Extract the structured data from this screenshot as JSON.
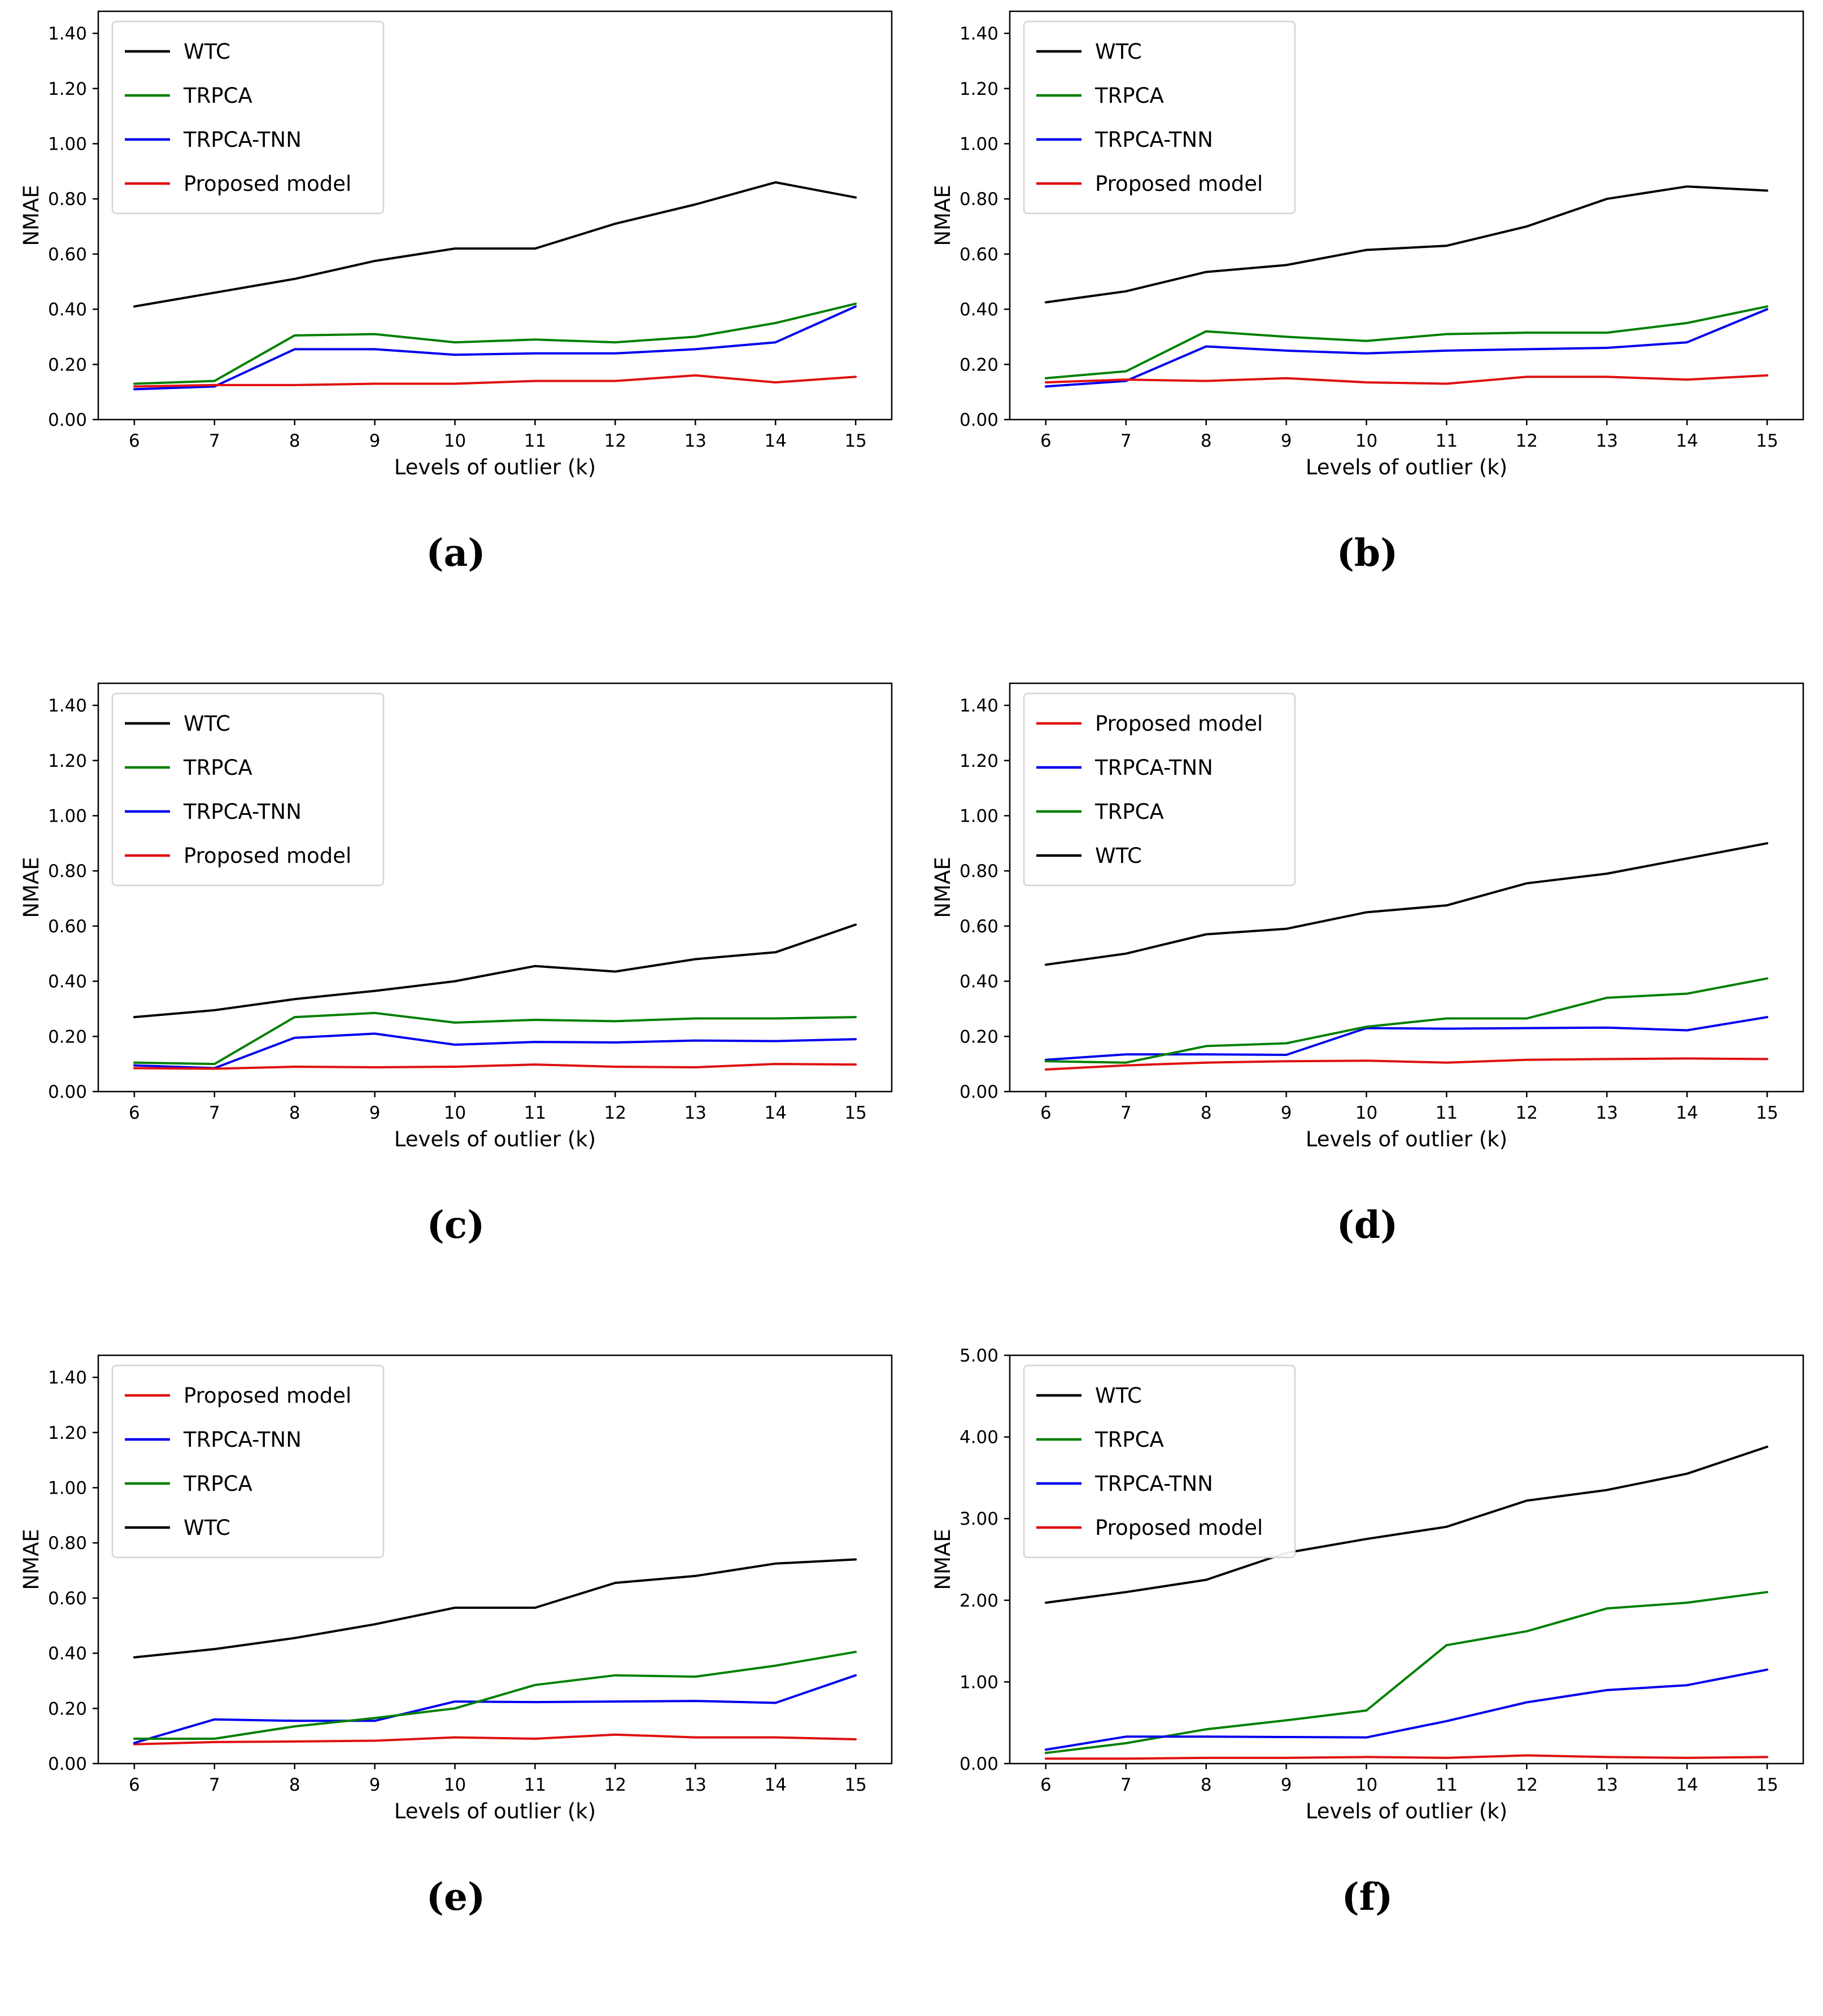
{
  "figure": {
    "xlabel": "Levels of outlier (k)",
    "ylabel": "NMAE"
  },
  "colors": {
    "WTC": "#000000",
    "TRPCA": "#008000",
    "TRPCA-TNN": "#0000ee",
    "Proposed model": "#e01010"
  },
  "chart_data": [
    {
      "id": "a",
      "type": "line",
      "caption": "(a)",
      "xlabel": "Levels of outlier (k)",
      "ylabel": "NMAE",
      "x": [
        6,
        7,
        8,
        9,
        10,
        11,
        12,
        13,
        14,
        15
      ],
      "xtick_labels": [
        "6",
        "7",
        "8",
        "9",
        "10",
        "11",
        "12",
        "13",
        "14",
        "15"
      ],
      "xlim": [
        5.55,
        15.45
      ],
      "ylim": [
        0,
        1.48
      ],
      "yticks": [
        0,
        0.2,
        0.4,
        0.6,
        0.8,
        1.0,
        1.2,
        1.4
      ],
      "ytick_labels": [
        "0.00",
        "0.20",
        "0.40",
        "0.60",
        "0.80",
        "1.00",
        "1.20",
        "1.40"
      ],
      "grid": false,
      "legend_position": "upper-left",
      "series": [
        {
          "name": "WTC",
          "values": [
            0.41,
            0.46,
            0.51,
            0.575,
            0.62,
            0.62,
            0.71,
            0.78,
            0.86,
            0.805
          ]
        },
        {
          "name": "TRPCA",
          "values": [
            0.13,
            0.14,
            0.305,
            0.31,
            0.28,
            0.29,
            0.28,
            0.3,
            0.35,
            0.42
          ]
        },
        {
          "name": "TRPCA-TNN",
          "values": [
            0.11,
            0.12,
            0.255,
            0.255,
            0.235,
            0.24,
            0.24,
            0.255,
            0.28,
            0.41
          ]
        },
        {
          "name": "Proposed model",
          "values": [
            0.12,
            0.125,
            0.125,
            0.13,
            0.13,
            0.14,
            0.14,
            0.16,
            0.135,
            0.155
          ]
        }
      ]
    },
    {
      "id": "b",
      "type": "line",
      "caption": "(b)",
      "xlabel": "Levels of outlier (k)",
      "ylabel": "NMAE",
      "x": [
        6,
        7,
        8,
        9,
        10,
        11,
        12,
        13,
        14,
        15
      ],
      "xtick_labels": [
        "6",
        "7",
        "8",
        "9",
        "10",
        "11",
        "12",
        "13",
        "14",
        "15"
      ],
      "xlim": [
        5.55,
        15.45
      ],
      "ylim": [
        0,
        1.48
      ],
      "yticks": [
        0,
        0.2,
        0.4,
        0.6,
        0.8,
        1.0,
        1.2,
        1.4
      ],
      "ytick_labels": [
        "0.00",
        "0.20",
        "0.40",
        "0.60",
        "0.80",
        "1.00",
        "1.20",
        "1.40"
      ],
      "grid": false,
      "legend_position": "upper-left",
      "series": [
        {
          "name": "WTC",
          "values": [
            0.425,
            0.465,
            0.535,
            0.56,
            0.615,
            0.63,
            0.7,
            0.8,
            0.845,
            0.83
          ]
        },
        {
          "name": "TRPCA",
          "values": [
            0.15,
            0.175,
            0.32,
            0.3,
            0.285,
            0.31,
            0.315,
            0.315,
            0.35,
            0.41
          ]
        },
        {
          "name": "TRPCA-TNN",
          "values": [
            0.12,
            0.14,
            0.265,
            0.25,
            0.24,
            0.25,
            0.255,
            0.26,
            0.28,
            0.4
          ]
        },
        {
          "name": "Proposed model",
          "values": [
            0.135,
            0.145,
            0.14,
            0.15,
            0.135,
            0.13,
            0.155,
            0.155,
            0.145,
            0.16
          ]
        }
      ]
    },
    {
      "id": "c",
      "type": "line",
      "caption": "(c)",
      "xlabel": "Levels of outlier (k)",
      "ylabel": "NMAE",
      "x": [
        6,
        7,
        8,
        9,
        10,
        11,
        12,
        13,
        14,
        15
      ],
      "xtick_labels": [
        "6",
        "7",
        "8",
        "9",
        "10",
        "11",
        "12",
        "13",
        "14",
        "15"
      ],
      "xlim": [
        5.55,
        15.45
      ],
      "ylim": [
        0,
        1.48
      ],
      "yticks": [
        0,
        0.2,
        0.4,
        0.6,
        0.8,
        1.0,
        1.2,
        1.4
      ],
      "ytick_labels": [
        "0.00",
        "0.20",
        "0.40",
        "0.60",
        "0.80",
        "1.00",
        "1.20",
        "1.40"
      ],
      "grid": false,
      "legend_position": "upper-left",
      "series": [
        {
          "name": "WTC",
          "values": [
            0.27,
            0.295,
            0.335,
            0.365,
            0.4,
            0.455,
            0.435,
            0.48,
            0.505,
            0.605
          ]
        },
        {
          "name": "TRPCA",
          "values": [
            0.105,
            0.1,
            0.27,
            0.285,
            0.25,
            0.26,
            0.255,
            0.265,
            0.265,
            0.27
          ]
        },
        {
          "name": "TRPCA-TNN",
          "values": [
            0.095,
            0.085,
            0.195,
            0.21,
            0.17,
            0.18,
            0.178,
            0.185,
            0.183,
            0.19
          ]
        },
        {
          "name": "Proposed model",
          "values": [
            0.085,
            0.083,
            0.09,
            0.088,
            0.09,
            0.098,
            0.09,
            0.088,
            0.1,
            0.098
          ]
        }
      ]
    },
    {
      "id": "d",
      "type": "line",
      "caption": "(d)",
      "xlabel": "Levels of outlier (k)",
      "ylabel": "NMAE",
      "x": [
        6,
        7,
        8,
        9,
        10,
        11,
        12,
        13,
        14,
        15
      ],
      "xtick_labels": [
        "6",
        "7",
        "8",
        "9",
        "10",
        "11",
        "12",
        "13",
        "14",
        "15"
      ],
      "xlim": [
        5.55,
        15.45
      ],
      "ylim": [
        0,
        1.48
      ],
      "yticks": [
        0,
        0.2,
        0.4,
        0.6,
        0.8,
        1.0,
        1.2,
        1.4
      ],
      "ytick_labels": [
        "0.00",
        "0.20",
        "0.40",
        "0.60",
        "0.80",
        "1.00",
        "1.20",
        "1.40"
      ],
      "grid": false,
      "legend_position": "upper-left",
      "series": [
        {
          "name": "Proposed model",
          "values": [
            0.08,
            0.095,
            0.105,
            0.11,
            0.112,
            0.105,
            0.115,
            0.118,
            0.12,
            0.118
          ]
        },
        {
          "name": "TRPCA-TNN",
          "values": [
            0.115,
            0.135,
            0.135,
            0.133,
            0.23,
            0.228,
            0.23,
            0.232,
            0.222,
            0.27
          ]
        },
        {
          "name": "TRPCA",
          "values": [
            0.11,
            0.105,
            0.165,
            0.175,
            0.235,
            0.265,
            0.265,
            0.34,
            0.355,
            0.41
          ]
        },
        {
          "name": "WTC",
          "values": [
            0.46,
            0.5,
            0.57,
            0.59,
            0.65,
            0.675,
            0.755,
            0.79,
            0.845,
            0.9
          ]
        }
      ]
    },
    {
      "id": "e",
      "type": "line",
      "caption": "(e)",
      "xlabel": "Levels of outlier (k)",
      "ylabel": "NMAE",
      "x": [
        6,
        7,
        8,
        9,
        10,
        11,
        12,
        13,
        14,
        15
      ],
      "xtick_labels": [
        "6",
        "7",
        "8",
        "9",
        "10",
        "11",
        "12",
        "13",
        "14",
        "15"
      ],
      "xlim": [
        5.55,
        15.45
      ],
      "ylim": [
        0,
        1.48
      ],
      "yticks": [
        0,
        0.2,
        0.4,
        0.6,
        0.8,
        1.0,
        1.2,
        1.4
      ],
      "ytick_labels": [
        "0.00",
        "0.20",
        "0.40",
        "0.60",
        "0.80",
        "1.00",
        "1.20",
        "1.40"
      ],
      "grid": false,
      "legend_position": "upper-left",
      "series": [
        {
          "name": "Proposed model",
          "values": [
            0.07,
            0.078,
            0.08,
            0.083,
            0.095,
            0.09,
            0.105,
            0.095,
            0.095,
            0.088
          ]
        },
        {
          "name": "TRPCA-TNN",
          "values": [
            0.075,
            0.16,
            0.155,
            0.155,
            0.225,
            0.223,
            0.225,
            0.227,
            0.22,
            0.32
          ]
        },
        {
          "name": "TRPCA",
          "values": [
            0.09,
            0.09,
            0.135,
            0.165,
            0.2,
            0.285,
            0.32,
            0.315,
            0.355,
            0.405
          ]
        },
        {
          "name": "WTC",
          "values": [
            0.385,
            0.415,
            0.455,
            0.505,
            0.565,
            0.565,
            0.655,
            0.68,
            0.725,
            0.74
          ]
        }
      ]
    },
    {
      "id": "f",
      "type": "line",
      "caption": "(f)",
      "xlabel": "Levels of outlier (k)",
      "ylabel": "NMAE",
      "x": [
        6,
        7,
        8,
        9,
        10,
        11,
        12,
        13,
        14,
        15
      ],
      "xtick_labels": [
        "6",
        "7",
        "8",
        "9",
        "10",
        "11",
        "12",
        "13",
        "14",
        "15"
      ],
      "xlim": [
        5.55,
        15.45
      ],
      "ylim": [
        0,
        5.0
      ],
      "yticks": [
        0,
        1,
        2,
        3,
        4,
        5
      ],
      "ytick_labels": [
        "0.00",
        "1.00",
        "2.00",
        "3.00",
        "4.00",
        "5.00"
      ],
      "grid": false,
      "legend_position": "upper-left",
      "series": [
        {
          "name": "WTC",
          "values": [
            1.97,
            2.1,
            2.25,
            2.58,
            2.75,
            2.9,
            3.22,
            3.35,
            3.55,
            3.88
          ]
        },
        {
          "name": "TRPCA",
          "values": [
            0.13,
            0.25,
            0.42,
            0.53,
            0.65,
            1.45,
            1.62,
            1.9,
            1.97,
            2.1
          ]
        },
        {
          "name": "TRPCA-TNN",
          "values": [
            0.17,
            0.33,
            0.33,
            0.325,
            0.32,
            0.52,
            0.75,
            0.9,
            0.96,
            1.15
          ]
        },
        {
          "name": "Proposed model",
          "values": [
            0.06,
            0.06,
            0.07,
            0.07,
            0.08,
            0.07,
            0.1,
            0.08,
            0.07,
            0.08
          ]
        }
      ]
    }
  ]
}
